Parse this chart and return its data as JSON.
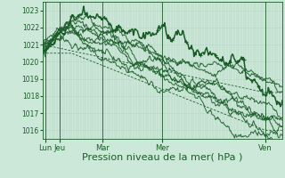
{
  "bg_color": "#cce8d8",
  "grid_color_v": "#a8c8b8",
  "grid_color_h": "#b8d8c8",
  "line_color": "#1a5c28",
  "xlim": [
    0,
    100
  ],
  "ylim": [
    1015.5,
    1023.5
  ],
  "yticks": [
    1016,
    1017,
    1018,
    1019,
    1020,
    1021,
    1022,
    1023
  ],
  "xlabel": "Pression niveau de la mer( hPa )",
  "xlabel_fontsize": 8,
  "xtick_labels": [
    "Lun",
    "Jeu",
    "Mar",
    "Mer",
    "Ven"
  ],
  "xtick_positions": [
    1,
    7,
    25,
    50,
    93
  ],
  "vline_positions": [
    1,
    7,
    25,
    50,
    93
  ],
  "figwidth": 3.2,
  "figheight": 2.0,
  "dpi": 100
}
